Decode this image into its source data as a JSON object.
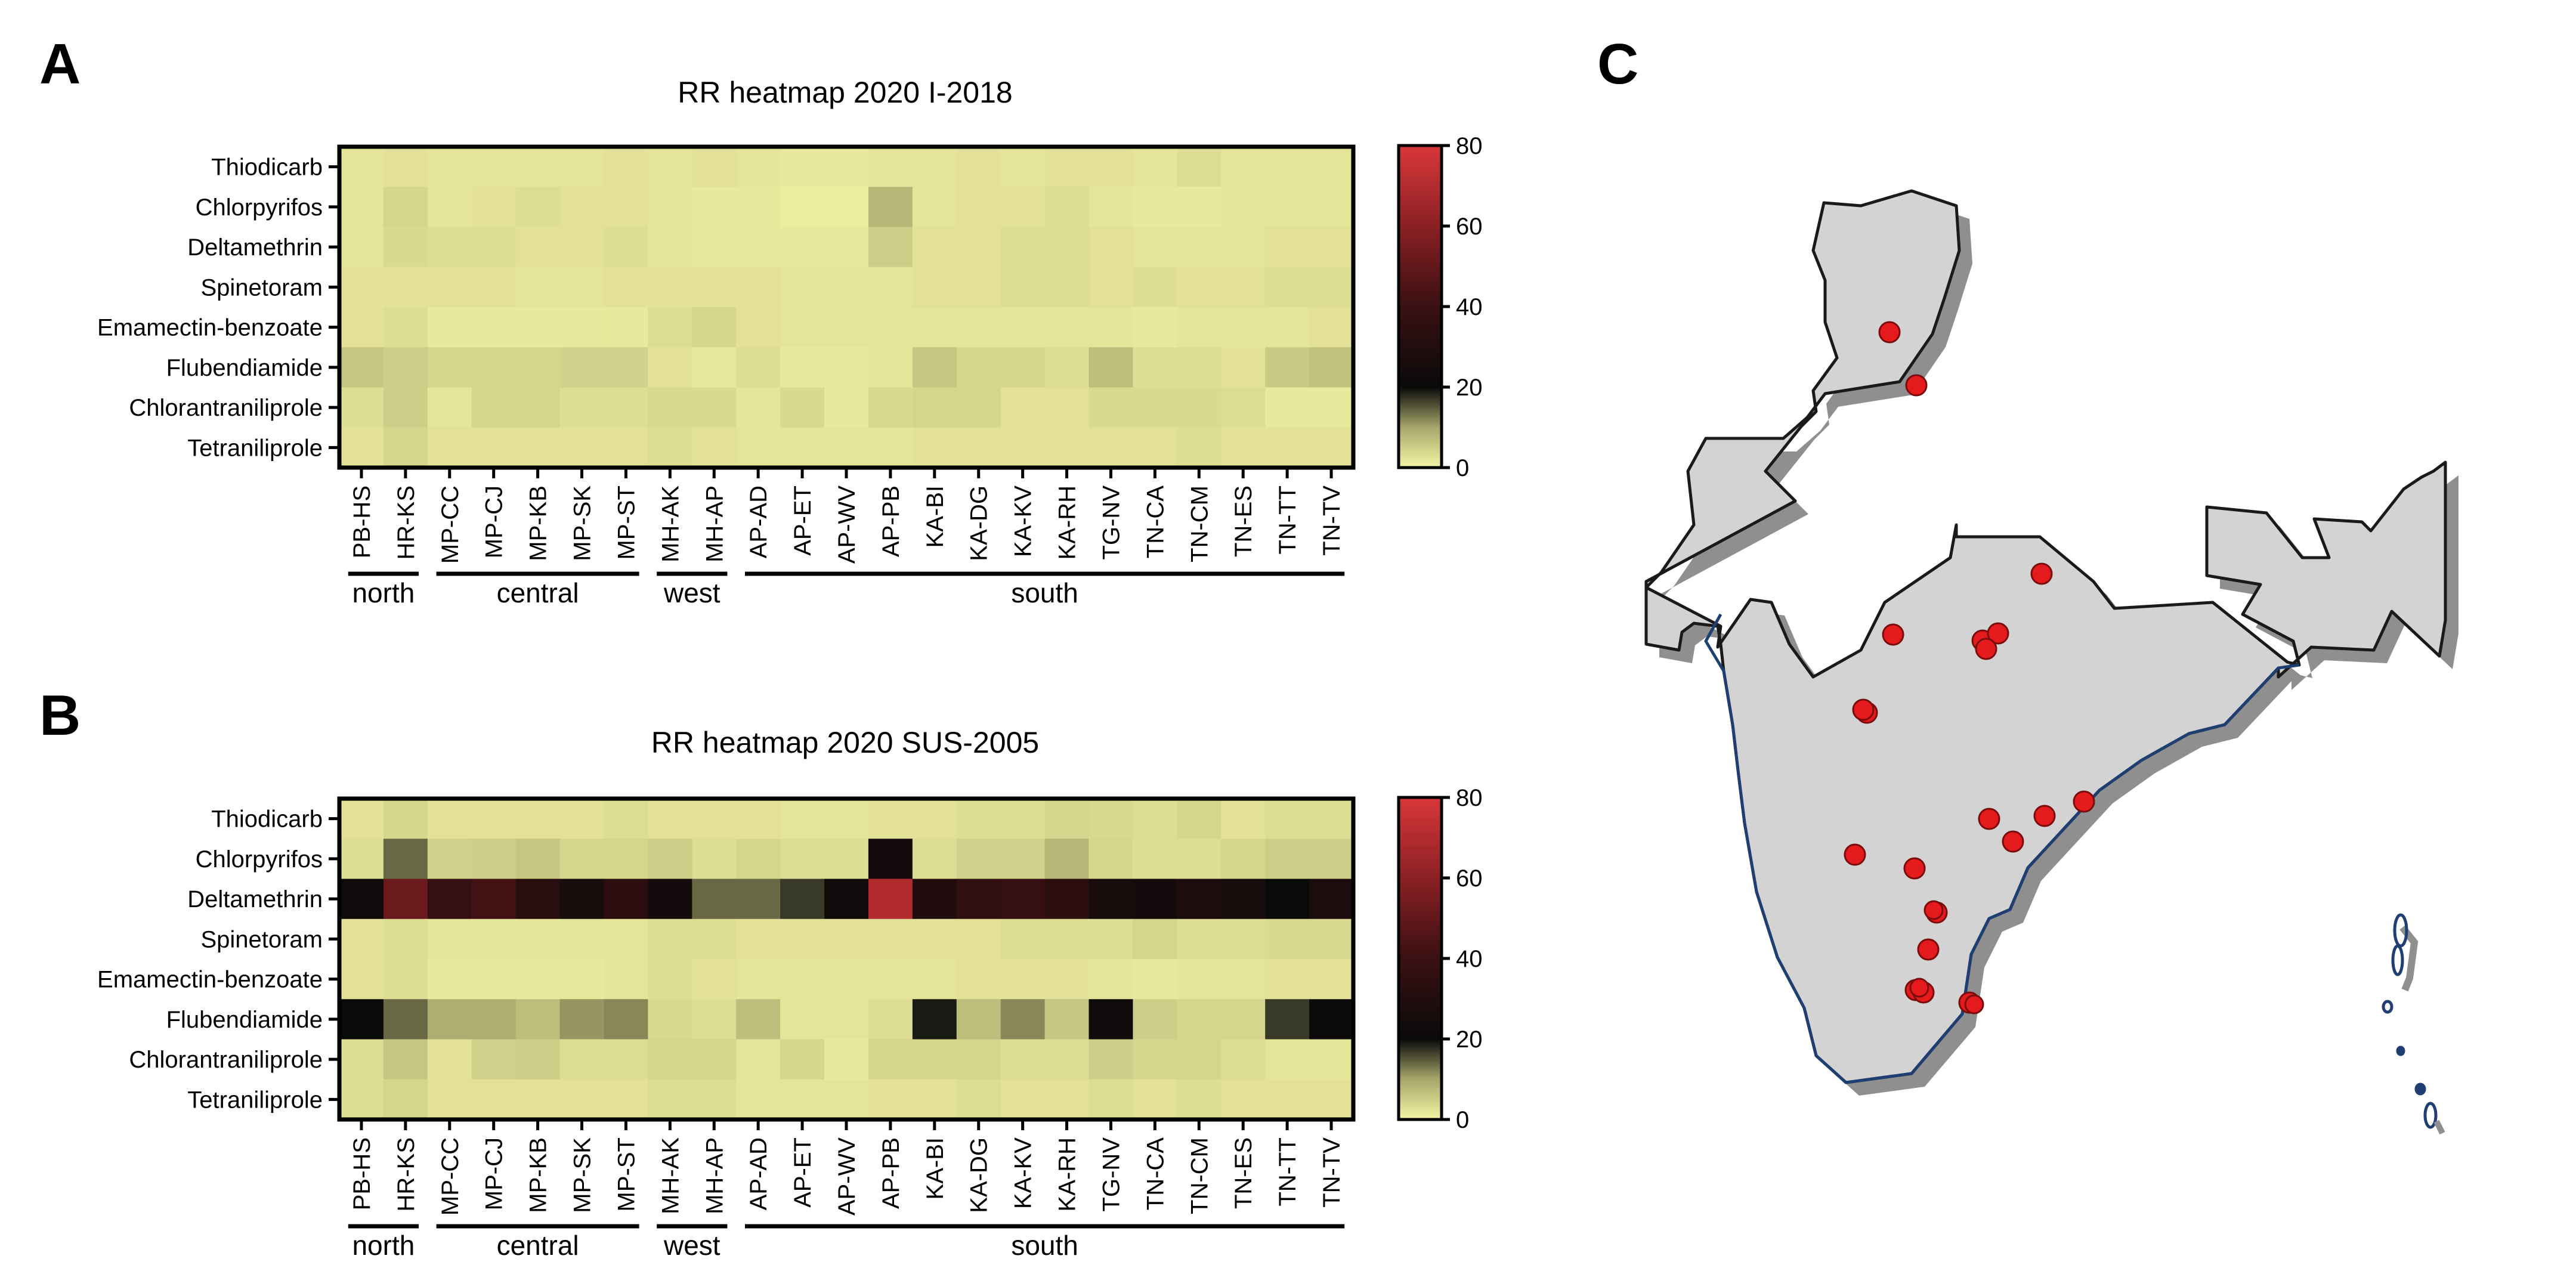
{
  "panels": [
    {
      "letter": "A"
    },
    {
      "letter": "B"
    },
    {
      "letter": "C"
    }
  ],
  "colormap": {
    "stops": [
      {
        "v": 0,
        "color": "#f5f5a6"
      },
      {
        "v": 10,
        "color": "#a7a66a"
      },
      {
        "v": 20,
        "color": "#0a0a0a"
      },
      {
        "v": 40,
        "color": "#3a1012"
      },
      {
        "v": 60,
        "color": "#8a2024"
      },
      {
        "v": 80,
        "color": "#d9373a"
      }
    ]
  },
  "chart_data": [
    {
      "type": "heatmap",
      "title": "RR heatmap 2020 I-2018",
      "rows": [
        "Thiodicarb",
        "Chlorpyrifos",
        "Deltamethrin",
        "Spinetoram",
        "Emamectin-benzoate",
        "Flubendiamide",
        "Chlorantraniliprole",
        "Tetraniliprole"
      ],
      "columns": [
        "PB-HS",
        "HR-KS",
        "MP-CC",
        "MP-CJ",
        "MP-KB",
        "MP-SK",
        "MP-ST",
        "MH-AK",
        "MH-AP",
        "AP-AD",
        "AP-ET",
        "AP-WV",
        "AP-PB",
        "KA-BI",
        "KA-DG",
        "KA-KV",
        "KA-RH",
        "TG-NV",
        "TN-CA",
        "TN-CM",
        "TN-ES",
        "TN-TT",
        "TN-TV"
      ],
      "groups": [
        {
          "label": "north",
          "start": 0,
          "end": 1
        },
        {
          "label": "central",
          "start": 2,
          "end": 6
        },
        {
          "label": "west",
          "start": 7,
          "end": 8
        },
        {
          "label": "south",
          "start": 9,
          "end": 22
        }
      ],
      "values": [
        [
          2,
          2.5,
          2,
          2,
          2,
          2,
          2.5,
          2,
          2.5,
          2,
          1.5,
          1.5,
          2,
          2,
          2.5,
          2,
          2.5,
          2.5,
          2,
          3,
          2,
          2,
          2
        ],
        [
          2,
          4,
          2,
          2.5,
          3,
          2.5,
          2.5,
          2,
          1.5,
          1.5,
          1,
          1,
          8,
          2,
          2.5,
          2.5,
          3,
          2,
          1.5,
          1.5,
          2,
          2,
          2
        ],
        [
          2,
          3.5,
          3,
          3,
          2.5,
          2.5,
          3,
          2,
          1.5,
          1.5,
          1.5,
          1.5,
          5,
          2.5,
          2.5,
          3,
          3,
          2.5,
          2,
          2,
          2,
          2.5,
          2.5
        ],
        [
          2.5,
          2.5,
          2.5,
          2.5,
          2,
          2,
          2.5,
          2.5,
          2.5,
          2.5,
          2,
          2,
          2,
          2.5,
          2.5,
          3,
          3,
          2.5,
          3,
          2.5,
          2.5,
          3,
          3
        ],
        [
          2.5,
          3,
          1.5,
          1.5,
          1.5,
          1.5,
          1.5,
          3,
          4,
          2.5,
          2,
          2,
          2,
          2,
          2,
          2,
          2,
          2,
          1.5,
          2,
          2,
          2,
          2.5
        ],
        [
          6,
          5,
          4,
          4,
          4,
          4.5,
          4.5,
          2.5,
          1.5,
          3,
          1.5,
          1.5,
          2,
          6,
          4,
          4,
          3,
          7,
          3,
          3,
          2.5,
          5.5,
          6.5
        ],
        [
          3,
          5,
          2,
          4,
          4,
          3,
          3,
          3.5,
          3.5,
          2,
          3.5,
          1.5,
          3.5,
          4,
          4,
          2.5,
          2.5,
          3.5,
          3.5,
          3.5,
          3,
          1.5,
          1.5
        ],
        [
          2.5,
          4,
          2.5,
          2.5,
          2.5,
          2.5,
          2.5,
          3,
          2.5,
          2,
          2,
          2,
          2,
          2.5,
          2.5,
          2.5,
          2.5,
          2.5,
          2.5,
          3,
          2.5,
          2.5,
          2.5
        ]
      ],
      "colorbar": {
        "ticks": [
          0,
          20,
          40,
          60,
          80
        ],
        "range": [
          0,
          80
        ]
      }
    },
    {
      "type": "heatmap",
      "title": "RR heatmap 2020 SUS-2005",
      "rows": [
        "Thiodicarb",
        "Chlorpyrifos",
        "Deltamethrin",
        "Spinetoram",
        "Emamectin-benzoate",
        "Flubendiamide",
        "Chlorantraniliprole",
        "Tetraniliprole"
      ],
      "columns": [
        "PB-HS",
        "HR-KS",
        "MP-CC",
        "MP-CJ",
        "MP-KB",
        "MP-SK",
        "MP-ST",
        "MH-AK",
        "MH-AP",
        "AP-AD",
        "AP-ET",
        "AP-WV",
        "AP-PB",
        "KA-BI",
        "KA-DG",
        "KA-KV",
        "KA-RH",
        "TG-NV",
        "TN-CA",
        "TN-CM",
        "TN-ES",
        "TN-TT",
        "TN-TV"
      ],
      "groups": [
        {
          "label": "north",
          "start": 0,
          "end": 1
        },
        {
          "label": "central",
          "start": 2,
          "end": 6
        },
        {
          "label": "west",
          "start": 7,
          "end": 8
        },
        {
          "label": "south",
          "start": 9,
          "end": 22
        }
      ],
      "values": [
        [
          2.5,
          4,
          2.5,
          2.5,
          2.5,
          2.5,
          3,
          2.5,
          2.5,
          2.5,
          2,
          2,
          2.5,
          2.5,
          3,
          3,
          4,
          3.5,
          3,
          4,
          2.5,
          3,
          3
        ],
        [
          3,
          14,
          4.5,
          5,
          6,
          4,
          4,
          5,
          3,
          4,
          3,
          3,
          24,
          3,
          4.5,
          4.5,
          8,
          4,
          3,
          3,
          4,
          5,
          5
        ],
        [
          22,
          52,
          38,
          42,
          33,
          26,
          34,
          24,
          14,
          14,
          17,
          22,
          70,
          30,
          36,
          38,
          34,
          26,
          24,
          28,
          26,
          20,
          28
        ],
        [
          2.5,
          3,
          2,
          2,
          2,
          2,
          2,
          3,
          3,
          2.5,
          2.5,
          2.5,
          2.5,
          2.5,
          2.5,
          3,
          3,
          3,
          4,
          3,
          3,
          3.5,
          3.5
        ],
        [
          2.5,
          3,
          1.5,
          1.5,
          1.5,
          1.5,
          2,
          3,
          2.5,
          2,
          2,
          2,
          2,
          2,
          2.5,
          2.5,
          2.5,
          2,
          1.5,
          2,
          2,
          2.5,
          2.5
        ],
        [
          20,
          14,
          9,
          9,
          7,
          11,
          12,
          3.5,
          3,
          7,
          2,
          2,
          3,
          19,
          7,
          12,
          6,
          22,
          5,
          4,
          4,
          17,
          21
        ],
        [
          3,
          6,
          2.5,
          4.5,
          5,
          3,
          3,
          4,
          4,
          2,
          4,
          1.5,
          4,
          4,
          4,
          3,
          3,
          5,
          4,
          4,
          3,
          2,
          2
        ],
        [
          3,
          4,
          2.5,
          2.5,
          2.5,
          2.5,
          2.5,
          3,
          3,
          2,
          2,
          2,
          2.5,
          2.5,
          3,
          2.5,
          2.5,
          3,
          2.5,
          3,
          2.5,
          2.5,
          2.5
        ]
      ],
      "colorbar": {
        "ticks": [
          0,
          20,
          40,
          60,
          80
        ],
        "range": [
          0,
          80
        ]
      }
    }
  ],
  "map": {
    "land_color": "#d3d3d3",
    "outline_color": "#1a1a1a",
    "coast_color": "#1f3f73",
    "marker_color": "#e41a1c",
    "islands_color": "#1f3f73"
  }
}
